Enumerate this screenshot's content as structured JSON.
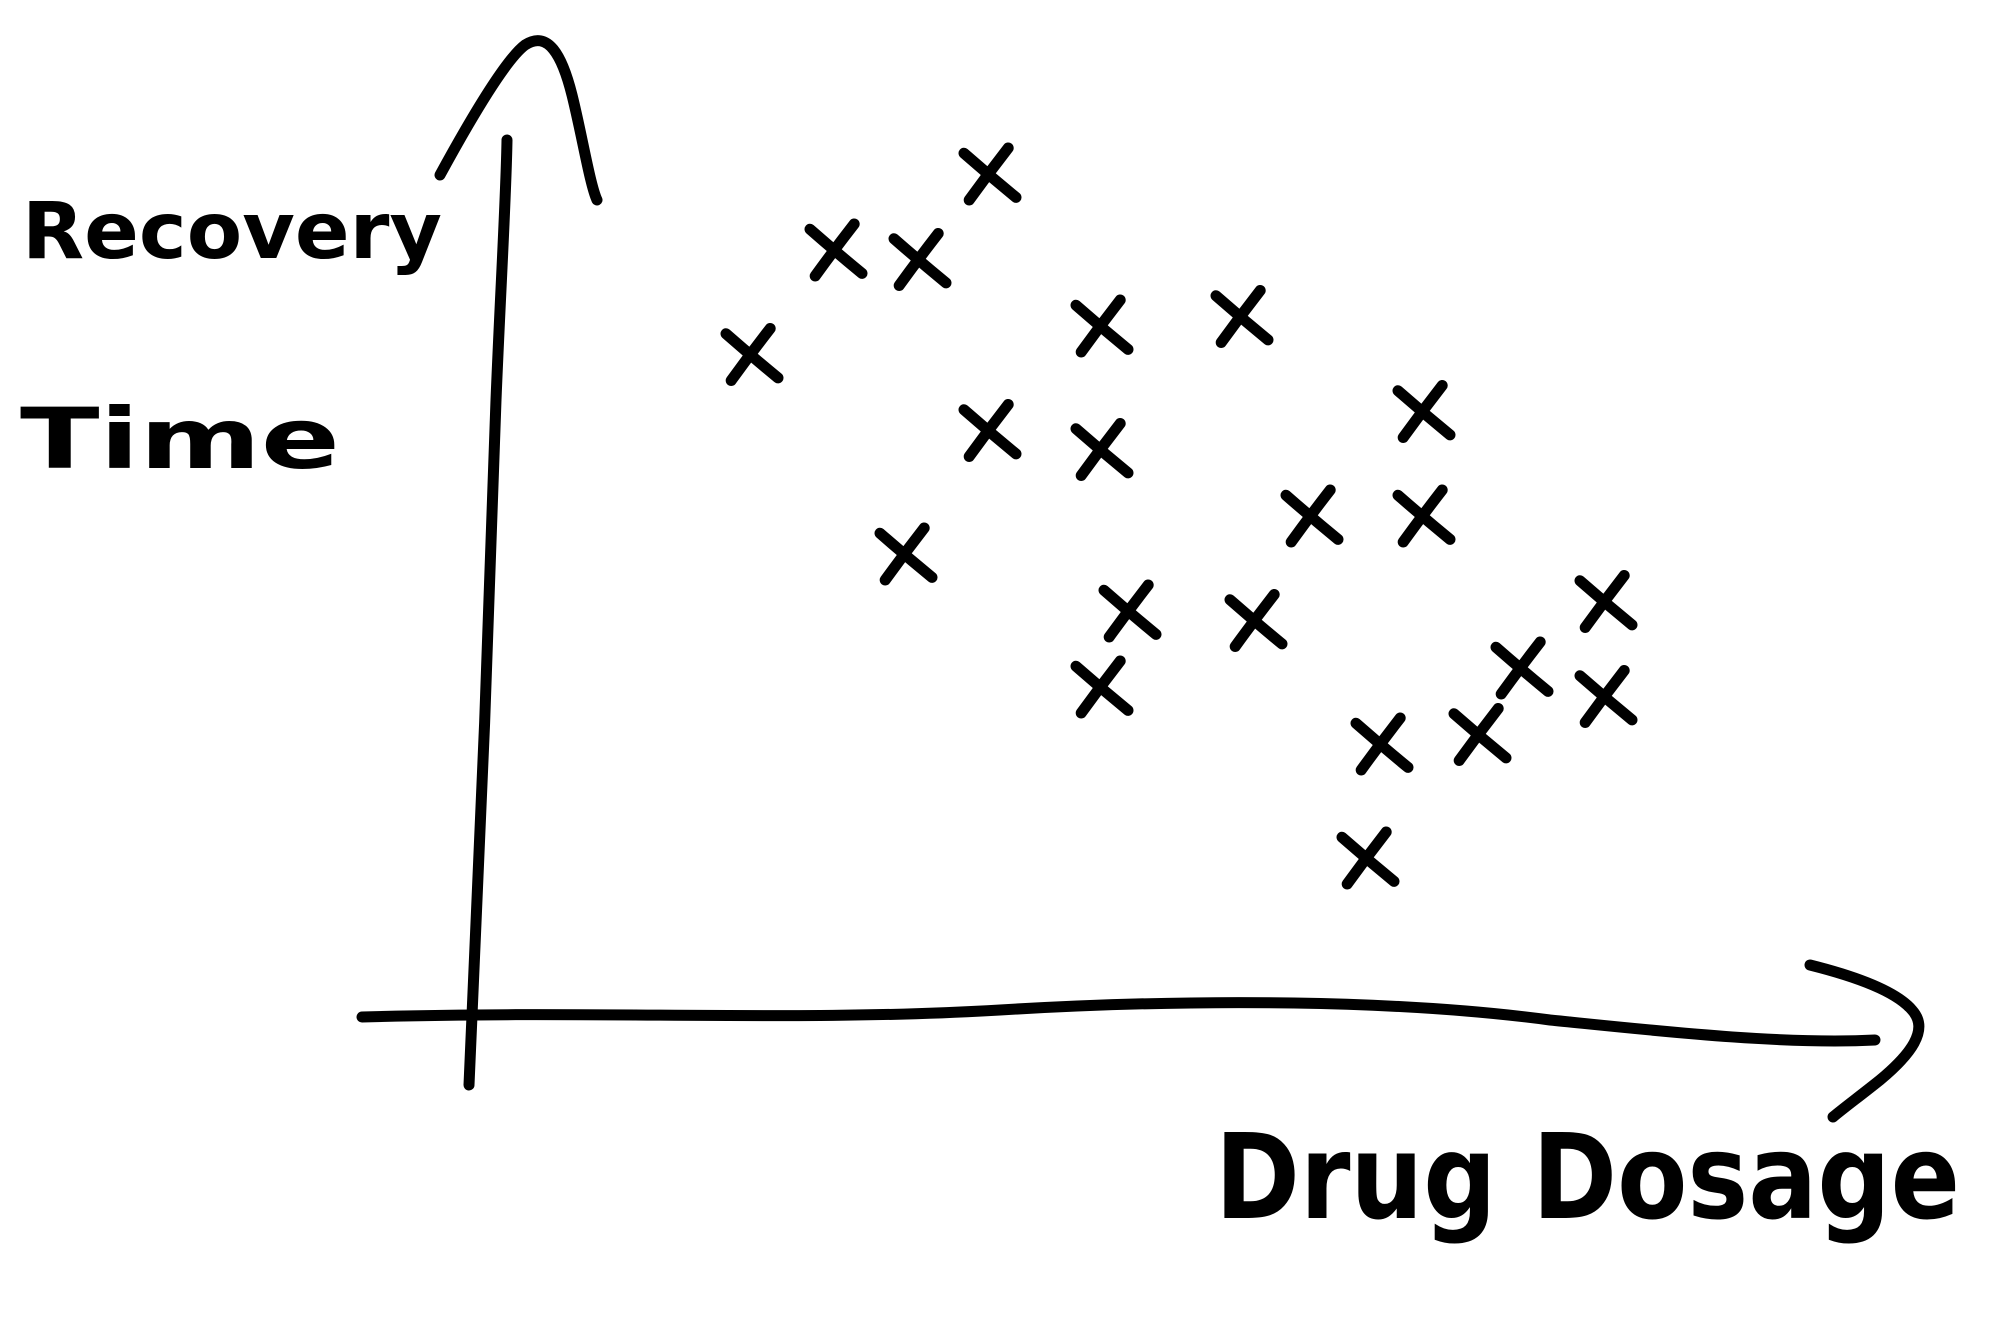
{
  "chart_data": {
    "type": "scatter",
    "title": "",
    "xlabel": "Drug Dosage",
    "ylabel_line1": "Recovery",
    "ylabel_line2": "Time",
    "grid": false,
    "legend": "none",
    "tick_labels": false,
    "xlim": [
      0,
      100
    ],
    "ylim": [
      0,
      100
    ],
    "marker": "x",
    "color": "#000000",
    "series": [
      {
        "points": [
          {
            "x": 20,
            "y": 69
          },
          {
            "x": 26,
            "y": 80
          },
          {
            "x": 32,
            "y": 79
          },
          {
            "x": 37,
            "y": 88
          },
          {
            "x": 31,
            "y": 48
          },
          {
            "x": 37,
            "y": 61
          },
          {
            "x": 45,
            "y": 72
          },
          {
            "x": 45,
            "y": 59
          },
          {
            "x": 55,
            "y": 73
          },
          {
            "x": 47,
            "y": 42
          },
          {
            "x": 45,
            "y": 34
          },
          {
            "x": 56,
            "y": 41
          },
          {
            "x": 60,
            "y": 52
          },
          {
            "x": 68,
            "y": 63
          },
          {
            "x": 68,
            "y": 52
          },
          {
            "x": 65,
            "y": 28
          },
          {
            "x": 72,
            "y": 29
          },
          {
            "x": 75,
            "y": 36
          },
          {
            "x": 81,
            "y": 43
          },
          {
            "x": 81,
            "y": 33
          },
          {
            "x": 64,
            "y": 16
          }
        ]
      }
    ]
  }
}
